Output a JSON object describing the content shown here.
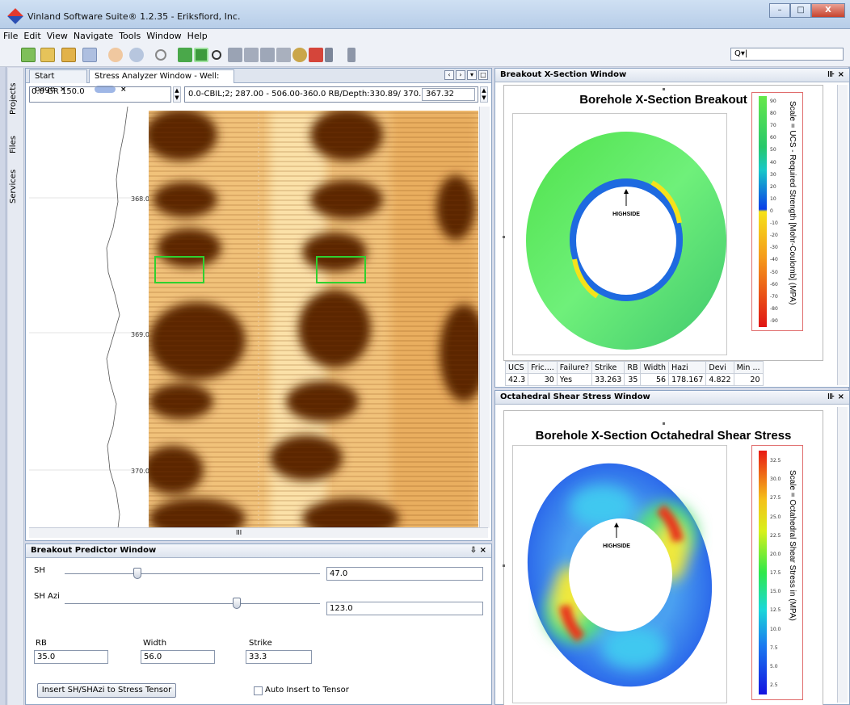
{
  "window": {
    "title": "Vinland Software Suite® 1.2.35 - Eriksfiord, Inc.",
    "buttons": [
      "–",
      "□",
      "X"
    ]
  },
  "menu": [
    "File",
    "Edit",
    "View",
    "Navigate",
    "Tools",
    "Window",
    "Help"
  ],
  "toolbar": {
    "search_value": "Q▾|",
    "icons": [
      "new-project-icon",
      "new-file-icon",
      "open-project-icon",
      "save-icon",
      "undo-icon",
      "redo-icon",
      "build-icon",
      "run-icon",
      "debug-icon",
      "search-icon",
      "grid-icon",
      "layers-icon",
      "chart-icon",
      "eye-icon",
      "cut-icon",
      "brush-icon",
      "pointer-icon"
    ]
  },
  "side_tabs": [
    "Projects",
    "Files",
    "Services"
  ],
  "editor": {
    "tabs": [
      {
        "label": "Start page"
      },
      {
        "label": "Stress Analyzer Window - Well:"
      }
    ],
    "gr_box": "0.0  GR  150.0",
    "info": "0.0-CBIL;2;  287.00 -  506.00-360.0  RB/Depth:330.89/  370.2953",
    "depth_value": "367.32",
    "depth_labels": [
      "368.0",
      "369.0",
      "370.0"
    ],
    "scroll_label": "III"
  },
  "predictor": {
    "title": "Breakout Predictor Window",
    "sh_label": "SH",
    "sh_value": "47.0",
    "sh_slider": 0.29,
    "shazi_label": "SH Azi",
    "shazi_value": "123.0",
    "shazi_slider": 0.67,
    "rb_label": "RB",
    "rb_value": "35.0",
    "width_label": "Width",
    "width_value": "56.0",
    "strike_label": "Strike",
    "strike_value": "33.3",
    "insert_button": "Insert SH/SHAzi to Stress Tensor",
    "auto_insert_label": "Auto Insert to Tensor"
  },
  "breakout": {
    "window_title": "Breakout X-Section Window",
    "plot_title": "Borehole X-Section Breakout",
    "highside": "HIGHSIDE",
    "scale_label": "Scale = UCS - Required Strength [Mohr-Coulomb] (MPA)",
    "scale_ticks": [
      "90",
      "80",
      "70",
      "60",
      "50",
      "40",
      "30",
      "20",
      "10",
      "0",
      "-10",
      "-20",
      "-30",
      "-40",
      "-50",
      "-60",
      "-70",
      "-80",
      "-90"
    ],
    "table": {
      "headers": [
        "UCS",
        "Fric....",
        "Failure?",
        "Strike",
        "RB",
        "Width",
        "Hazi",
        "Devi",
        "Min ..."
      ],
      "row": [
        "42.3",
        "30",
        "Yes",
        "33.263",
        "35",
        "56",
        "178.167",
        "4.822",
        "20"
      ]
    }
  },
  "octahedral": {
    "window_title": "Octahedral Shear Stress Window",
    "plot_title": "Borehole X-Section Octahedral Shear Stress",
    "highside": "HIGHSIDE",
    "scale_label": "Scale = Octahedral Shear Stress in (MPA)",
    "scale_ticks": [
      "32.5",
      "30.0",
      "27.5",
      "25.0",
      "22.5",
      "20.0",
      "17.5",
      "15.0",
      "12.5",
      "10.0",
      "7.5",
      "5.0",
      "2.5"
    ]
  }
}
